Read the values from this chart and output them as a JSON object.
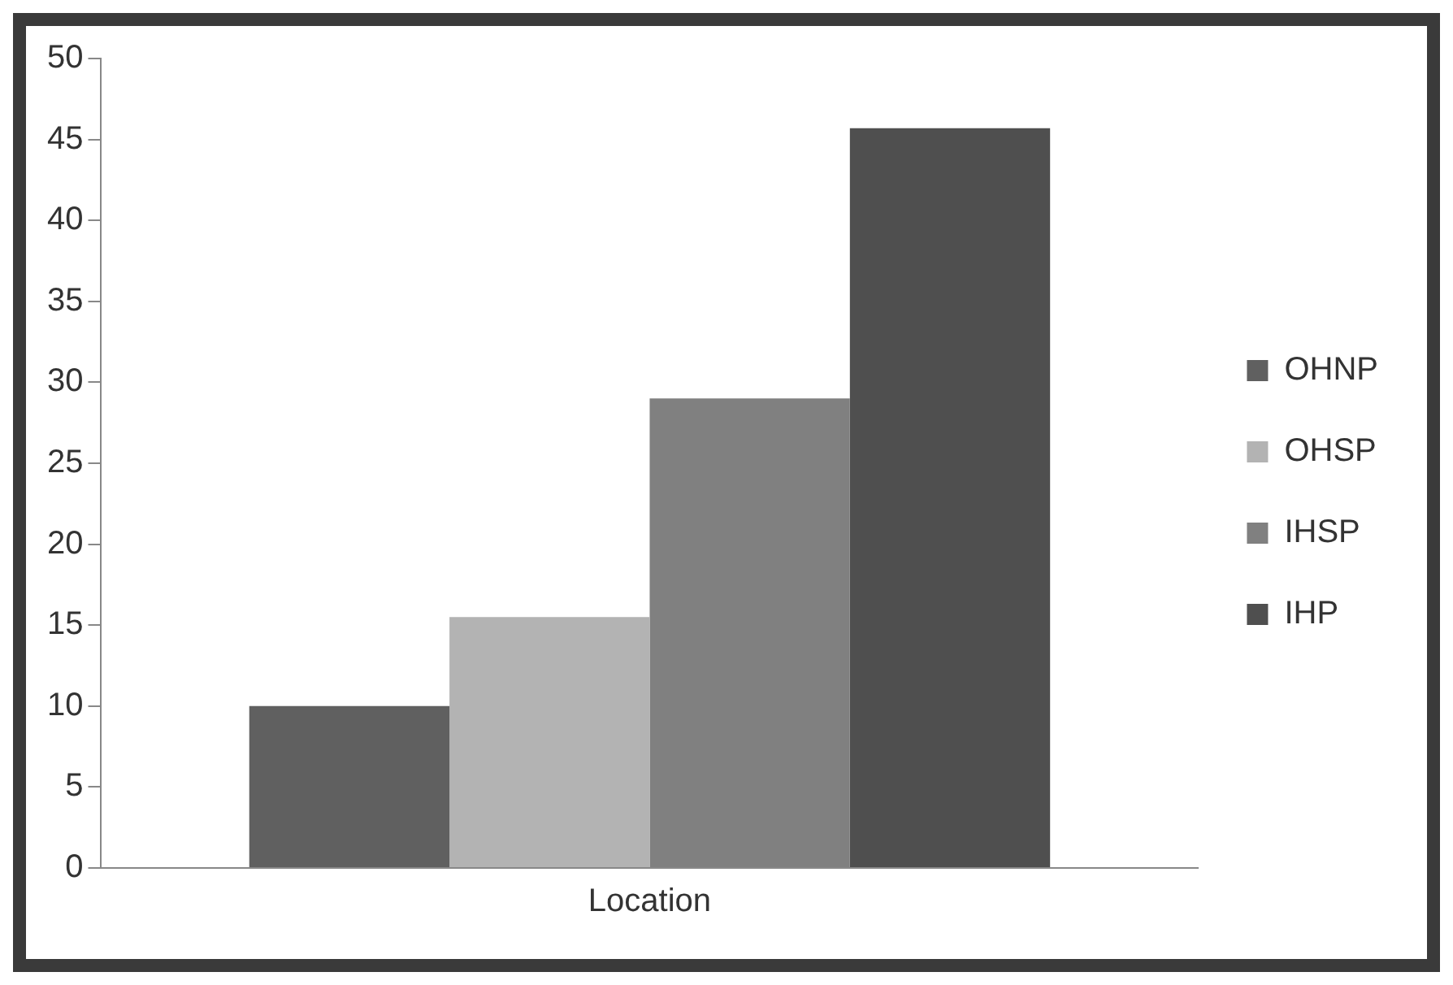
{
  "chart_data": {
    "type": "bar",
    "categories": [
      "Location"
    ],
    "series": [
      {
        "name": "OHNP",
        "color": "#606060",
        "values": [
          10
        ]
      },
      {
        "name": "OHSP",
        "color": "#b3b3b3",
        "values": [
          15.5
        ]
      },
      {
        "name": "IHSP",
        "color": "#808080",
        "values": [
          29
        ]
      },
      {
        "name": "IHP",
        "color": "#4f4f4f",
        "values": [
          45.7
        ]
      }
    ],
    "ylim": [
      0,
      50
    ],
    "yticks": [
      0,
      5,
      10,
      15,
      20,
      25,
      30,
      35,
      40,
      45,
      50
    ],
    "legend": "right"
  }
}
